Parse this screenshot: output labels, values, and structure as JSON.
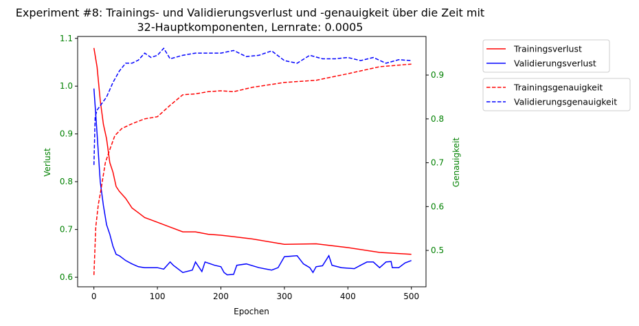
{
  "chart_data": {
    "type": "line",
    "title_line1": "Experiment #8: Trainings- und Validierungsverlust und -genauigkeit über die Zeit mit",
    "title_line2": "32-Hauptkomponenten, Lernrate: 0.0005",
    "xlabel": "Epochen",
    "ylabel_left": "Verlust",
    "ylabel_right": "Genauigkeit",
    "xlim": [
      -25.6,
      523
    ],
    "ylim_left": [
      0.58,
      1.104
    ],
    "ylim_right": [
      0.417,
      0.988
    ],
    "x_ticks": [
      "0",
      "100",
      "200",
      "300",
      "400",
      "500"
    ],
    "y_ticks_left": [
      "0.6",
      "0.7",
      "0.8",
      "0.9",
      "1.0",
      "1.1"
    ],
    "y_ticks_right": [
      "0.5",
      "0.6",
      "0.7",
      "0.8",
      "0.9"
    ],
    "tick_label_color": "#008000",
    "axis_label_color": "#008000",
    "grid": false,
    "legend_placement": "outside-right",
    "series": [
      {
        "name": "Trainingsverlust",
        "axis": "left",
        "color": "#ff0000",
        "dash": false,
        "points": [
          [
            0,
            1.08
          ],
          [
            5,
            1.04
          ],
          [
            10,
            0.97
          ],
          [
            15,
            0.92
          ],
          [
            20,
            0.89
          ],
          [
            25,
            0.84
          ],
          [
            30,
            0.82
          ],
          [
            35,
            0.79
          ],
          [
            40,
            0.78
          ],
          [
            50,
            0.765
          ],
          [
            60,
            0.745
          ],
          [
            70,
            0.735
          ],
          [
            80,
            0.725
          ],
          [
            90,
            0.72
          ],
          [
            100,
            0.715
          ],
          [
            120,
            0.705
          ],
          [
            140,
            0.695
          ],
          [
            160,
            0.695
          ],
          [
            180,
            0.69
          ],
          [
            200,
            0.688
          ],
          [
            220,
            0.685
          ],
          [
            250,
            0.68
          ],
          [
            300,
            0.669
          ],
          [
            350,
            0.67
          ],
          [
            400,
            0.662
          ],
          [
            450,
            0.652
          ],
          [
            500,
            0.648
          ]
        ]
      },
      {
        "name": "Validierungsverlust",
        "axis": "left",
        "color": "#0000ff",
        "dash": false,
        "points": [
          [
            0,
            0.995
          ],
          [
            3,
            0.94
          ],
          [
            5,
            0.9
          ],
          [
            10,
            0.8
          ],
          [
            15,
            0.75
          ],
          [
            20,
            0.71
          ],
          [
            25,
            0.69
          ],
          [
            30,
            0.665
          ],
          [
            35,
            0.648
          ],
          [
            40,
            0.645
          ],
          [
            50,
            0.635
          ],
          [
            60,
            0.628
          ],
          [
            70,
            0.622
          ],
          [
            80,
            0.62
          ],
          [
            100,
            0.62
          ],
          [
            110,
            0.617
          ],
          [
            120,
            0.632
          ],
          [
            125,
            0.625
          ],
          [
            140,
            0.61
          ],
          [
            155,
            0.615
          ],
          [
            160,
            0.632
          ],
          [
            170,
            0.612
          ],
          [
            175,
            0.632
          ],
          [
            190,
            0.625
          ],
          [
            200,
            0.622
          ],
          [
            205,
            0.61
          ],
          [
            210,
            0.605
          ],
          [
            220,
            0.606
          ],
          [
            225,
            0.625
          ],
          [
            240,
            0.628
          ],
          [
            260,
            0.62
          ],
          [
            280,
            0.615
          ],
          [
            290,
            0.62
          ],
          [
            300,
            0.643
          ],
          [
            320,
            0.645
          ],
          [
            330,
            0.628
          ],
          [
            340,
            0.62
          ],
          [
            345,
            0.61
          ],
          [
            350,
            0.622
          ],
          [
            360,
            0.624
          ],
          [
            370,
            0.645
          ],
          [
            375,
            0.625
          ],
          [
            390,
            0.62
          ],
          [
            410,
            0.618
          ],
          [
            420,
            0.625
          ],
          [
            430,
            0.632
          ],
          [
            440,
            0.632
          ],
          [
            450,
            0.62
          ],
          [
            460,
            0.632
          ],
          [
            468,
            0.633
          ],
          [
            470,
            0.62
          ],
          [
            480,
            0.62
          ],
          [
            490,
            0.63
          ],
          [
            500,
            0.635
          ]
        ]
      },
      {
        "name": "Trainingsgenauigkeit",
        "axis": "right",
        "color": "#ff0000",
        "dash": true,
        "points": [
          [
            0,
            0.444
          ],
          [
            1,
            0.48
          ],
          [
            3,
            0.554
          ],
          [
            5,
            0.58
          ],
          [
            7,
            0.605
          ],
          [
            11,
            0.637
          ],
          [
            18,
            0.7
          ],
          [
            25,
            0.73
          ],
          [
            33,
            0.762
          ],
          [
            44,
            0.778
          ],
          [
            60,
            0.789
          ],
          [
            80,
            0.8
          ],
          [
            100,
            0.805
          ],
          [
            120,
            0.831
          ],
          [
            140,
            0.855
          ],
          [
            160,
            0.857
          ],
          [
            180,
            0.862
          ],
          [
            200,
            0.864
          ],
          [
            220,
            0.862
          ],
          [
            250,
            0.872
          ],
          [
            300,
            0.883
          ],
          [
            350,
            0.888
          ],
          [
            400,
            0.903
          ],
          [
            450,
            0.919
          ],
          [
            500,
            0.925
          ]
        ]
      },
      {
        "name": "Validierungsgenauigkeit",
        "axis": "right",
        "color": "#0000ff",
        "dash": true,
        "points": [
          [
            0,
            0.695
          ],
          [
            2,
            0.805
          ],
          [
            5,
            0.82
          ],
          [
            10,
            0.83
          ],
          [
            20,
            0.85
          ],
          [
            30,
            0.883
          ],
          [
            40,
            0.909
          ],
          [
            50,
            0.927
          ],
          [
            60,
            0.927
          ],
          [
            70,
            0.934
          ],
          [
            80,
            0.95
          ],
          [
            90,
            0.94
          ],
          [
            100,
            0.945
          ],
          [
            110,
            0.961
          ],
          [
            120,
            0.937
          ],
          [
            140,
            0.945
          ],
          [
            160,
            0.95
          ],
          [
            180,
            0.95
          ],
          [
            200,
            0.95
          ],
          [
            220,
            0.956
          ],
          [
            240,
            0.942
          ],
          [
            260,
            0.945
          ],
          [
            280,
            0.955
          ],
          [
            300,
            0.933
          ],
          [
            320,
            0.927
          ],
          [
            340,
            0.945
          ],
          [
            360,
            0.937
          ],
          [
            380,
            0.937
          ],
          [
            400,
            0.94
          ],
          [
            420,
            0.933
          ],
          [
            440,
            0.94
          ],
          [
            460,
            0.927
          ],
          [
            480,
            0.935
          ],
          [
            500,
            0.933
          ]
        ]
      }
    ],
    "legends": [
      [
        "Trainingsverlust",
        "Validierungsverlust"
      ],
      [
        "Trainingsgenauigkeit",
        "Validierungsgenauigkeit"
      ]
    ]
  }
}
